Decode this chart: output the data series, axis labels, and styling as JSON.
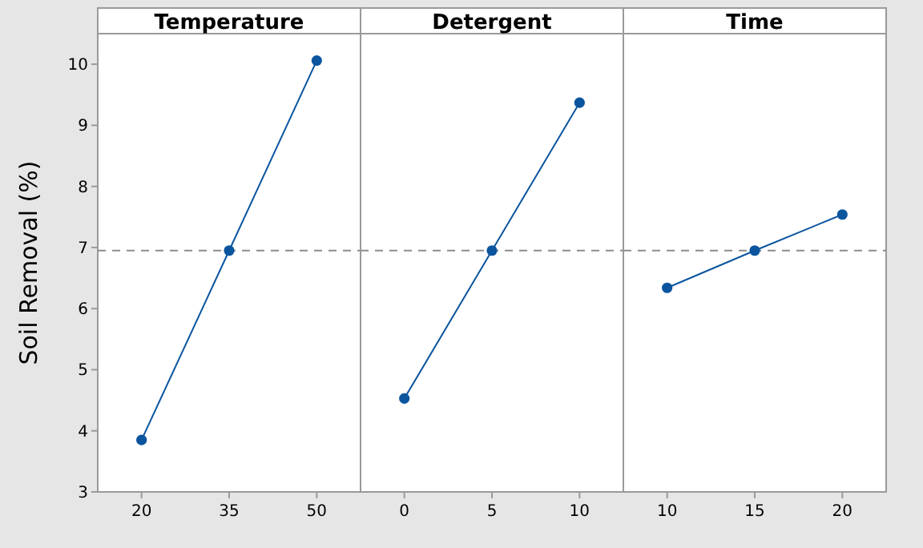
{
  "chart_data": [
    {
      "type": "line",
      "title": "Temperature",
      "ylabel": "Soil Removal (%)",
      "categories": [
        "20",
        "35",
        "50"
      ],
      "series": [
        {
          "color": "#0b559f",
          "values": [
            3.85,
            6.95,
            10.06
          ]
        }
      ],
      "ylim": [
        3,
        10.5
      ],
      "yticks": [
        3,
        4,
        5,
        6,
        7,
        8,
        9,
        10
      ],
      "marker": "circle",
      "line_style": "solid",
      "ref_lines": [
        {
          "axis": "y",
          "value": 6.95,
          "color": "#8c8c8c",
          "line_style": "dashed"
        }
      ],
      "grid": false
    },
    {
      "type": "line",
      "title": "Detergent",
      "categories": [
        "0",
        "5",
        "10"
      ],
      "series": [
        {
          "color": "#0b559f",
          "values": [
            4.53,
            6.95,
            9.37
          ]
        }
      ],
      "ylim": [
        3,
        10.5
      ],
      "tick_labels": "x",
      "marker": "circle",
      "line_style": "solid",
      "ref_lines": [
        {
          "axis": "y",
          "value": 6.95,
          "color": "#8c8c8c",
          "line_style": "dashed"
        }
      ],
      "grid": false
    },
    {
      "type": "line",
      "title": "Time",
      "categories": [
        "10",
        "15",
        "20"
      ],
      "series": [
        {
          "color": "#0b559f",
          "values": [
            6.34,
            6.95,
            7.54
          ]
        }
      ],
      "ylim": [
        3,
        10.5
      ],
      "tick_labels": "x",
      "marker": "circle",
      "line_style": "solid",
      "ref_lines": [
        {
          "axis": "y",
          "value": 6.95,
          "color": "#8c8c8c",
          "line_style": "dashed"
        }
      ],
      "grid": false
    }
  ]
}
